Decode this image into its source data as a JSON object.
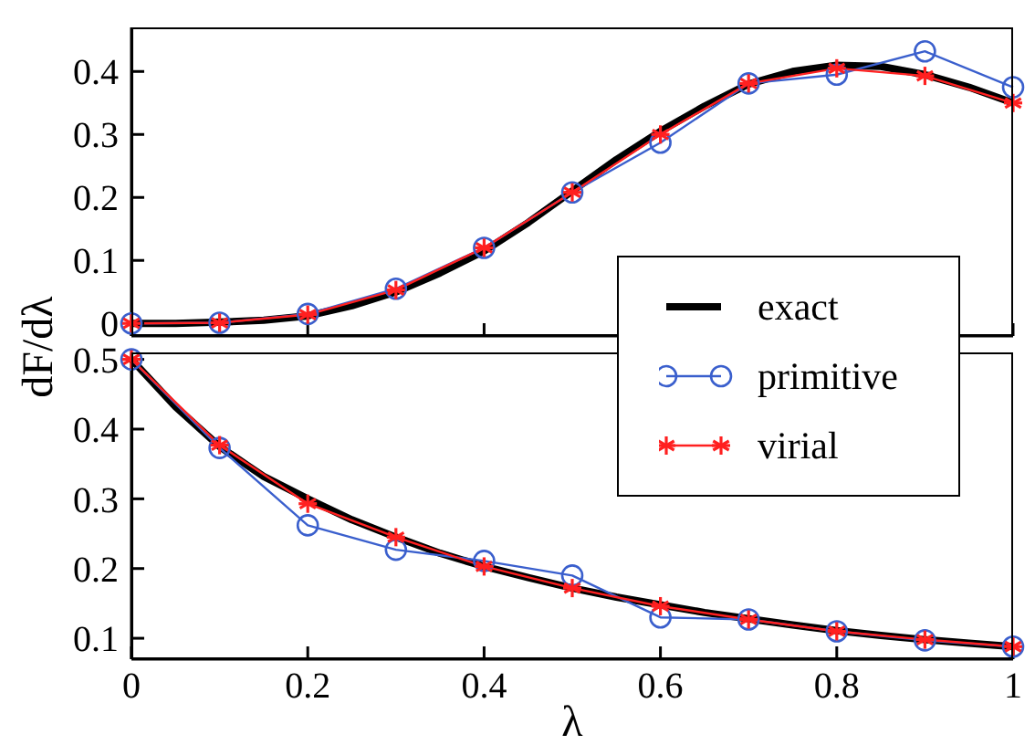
{
  "chart_data": [
    {
      "type": "line",
      "ylabel": "dF/dλ",
      "xlim": [
        0,
        1
      ],
      "xticks": [
        0,
        0.2,
        0.4,
        0.6,
        0.8,
        1
      ],
      "ylim": [
        -0.02,
        0.47
      ],
      "yticks": [
        0,
        0.1,
        0.2,
        0.3,
        0.4
      ],
      "tick_labels": "y",
      "grid": false,
      "legend": "bottom right",
      "series": [
        {
          "name": "exact",
          "color": "#000000",
          "marker": "none",
          "x": [
            0,
            0.05,
            0.1,
            0.15,
            0.2,
            0.25,
            0.3,
            0.35,
            0.4,
            0.45,
            0.5,
            0.55,
            0.6,
            0.65,
            0.7,
            0.75,
            0.8,
            0.85,
            0.9,
            0.95,
            1
          ],
          "values": [
            0,
            0,
            0.002,
            0.005,
            0.012,
            0.028,
            0.05,
            0.08,
            0.115,
            0.16,
            0.21,
            0.26,
            0.305,
            0.345,
            0.38,
            0.4,
            0.41,
            0.408,
            0.395,
            0.375,
            0.35
          ]
        },
        {
          "name": "primitive",
          "color": "#3a5fcd",
          "marker": "circle",
          "x": [
            0,
            0.1,
            0.2,
            0.3,
            0.4,
            0.5,
            0.6,
            0.7,
            0.8,
            0.9,
            1
          ],
          "values": [
            0,
            0.001,
            0.015,
            0.055,
            0.12,
            0.208,
            0.287,
            0.381,
            0.395,
            0.432,
            0.375
          ]
        },
        {
          "name": "virial",
          "color": "#ff2020",
          "marker": "cross",
          "x": [
            0,
            0.1,
            0.2,
            0.3,
            0.4,
            0.5,
            0.6,
            0.7,
            0.8,
            0.9,
            1
          ],
          "values": [
            0,
            0.001,
            0.014,
            0.053,
            0.12,
            0.208,
            0.3,
            0.381,
            0.405,
            0.393,
            0.35
          ]
        }
      ]
    },
    {
      "type": "line",
      "xlabel": "λ",
      "xlim": [
        0,
        1
      ],
      "xticks": [
        0,
        0.2,
        0.4,
        0.6,
        0.8,
        1
      ],
      "ylim": [
        0.07,
        0.51
      ],
      "yticks": [
        0.1,
        0.2,
        0.3,
        0.4,
        0.5
      ],
      "grid": false,
      "series": [
        {
          "color": "#000000",
          "marker": "none",
          "x": [
            0,
            0.05,
            0.1,
            0.15,
            0.2,
            0.25,
            0.3,
            0.35,
            0.4,
            0.45,
            0.5,
            0.55,
            0.6,
            0.65,
            0.7,
            0.75,
            0.8,
            0.85,
            0.9,
            0.95,
            1
          ],
          "values": [
            0.5,
            0.432,
            0.375,
            0.332,
            0.3,
            0.27,
            0.245,
            0.222,
            0.203,
            0.187,
            0.172,
            0.159,
            0.148,
            0.137,
            0.128,
            0.119,
            0.111,
            0.104,
            0.098,
            0.093,
            0.088
          ]
        },
        {
          "color": "#3a5fcd",
          "marker": "circle",
          "x": [
            0,
            0.1,
            0.2,
            0.3,
            0.4,
            0.5,
            0.6,
            0.7,
            0.8,
            0.9,
            1
          ],
          "values": [
            0.5,
            0.373,
            0.262,
            0.227,
            0.211,
            0.19,
            0.13,
            0.127,
            0.11,
            0.097,
            0.088
          ]
        },
        {
          "color": "#ff2020",
          "marker": "cross",
          "x": [
            0,
            0.1,
            0.2,
            0.3,
            0.4,
            0.5,
            0.6,
            0.7,
            0.8,
            0.9,
            1
          ],
          "values": [
            0.5,
            0.377,
            0.293,
            0.245,
            0.203,
            0.172,
            0.146,
            0.127,
            0.11,
            0.098,
            0.088
          ]
        }
      ]
    }
  ]
}
